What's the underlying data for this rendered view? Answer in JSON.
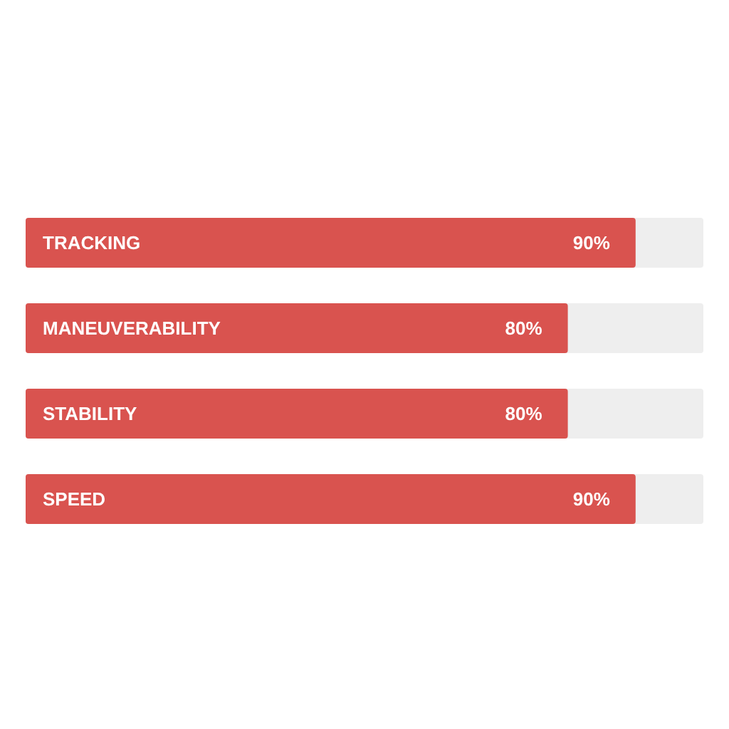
{
  "chart_data": {
    "type": "bar",
    "orientation": "horizontal",
    "categories": [
      "TRACKING",
      "MANEUVERABILITY",
      "STABILITY",
      "SPEED"
    ],
    "values": [
      90,
      80,
      80,
      90
    ],
    "value_labels": [
      "90%",
      "80%",
      "80%",
      "90%"
    ],
    "color": "#d9534f",
    "xlim": [
      0,
      100
    ],
    "tick_labels": false
  }
}
